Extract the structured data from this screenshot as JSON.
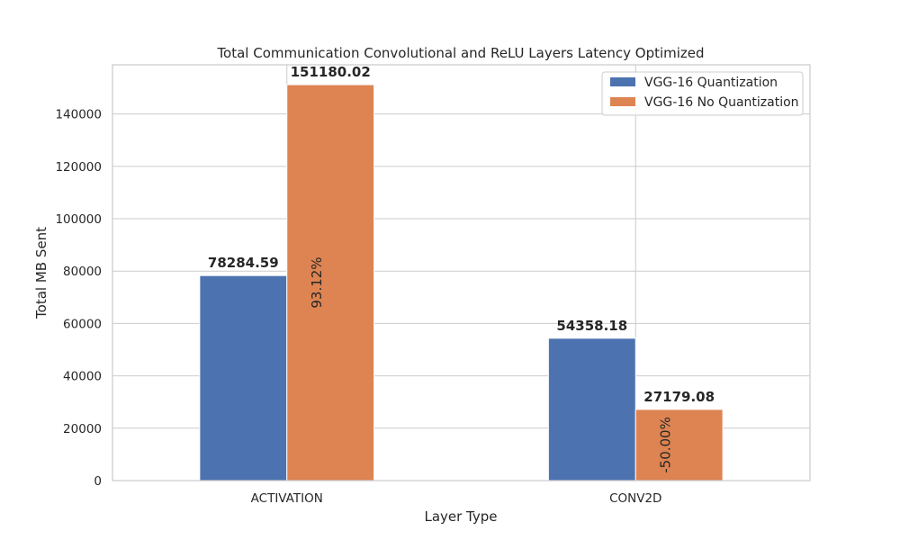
{
  "chart_data": {
    "type": "bar",
    "title": "Total Communication Convolutional and ReLU Layers Latency Optimized",
    "xlabel": "Layer Type",
    "ylabel": "Total MB Sent",
    "categories": [
      "ACTIVATION",
      "CONV2D"
    ],
    "series": [
      {
        "name": "VGG-16 Quantization",
        "color": "#4C72B0",
        "values": [
          78284.59,
          54358.18
        ],
        "labels": [
          "78284.59",
          "54358.18"
        ]
      },
      {
        "name": "VGG-16 No Quantization",
        "color": "#DD8452",
        "values": [
          151180.02,
          27179.08
        ],
        "labels": [
          "151180.02",
          "27179.08"
        ]
      }
    ],
    "change_labels": [
      "93.12%",
      "-50.00%"
    ],
    "ylim": [
      0,
      158770
    ],
    "yticks": [
      0,
      20000,
      40000,
      60000,
      80000,
      100000,
      120000,
      140000
    ],
    "grid": true,
    "legend_position": "top-right"
  }
}
